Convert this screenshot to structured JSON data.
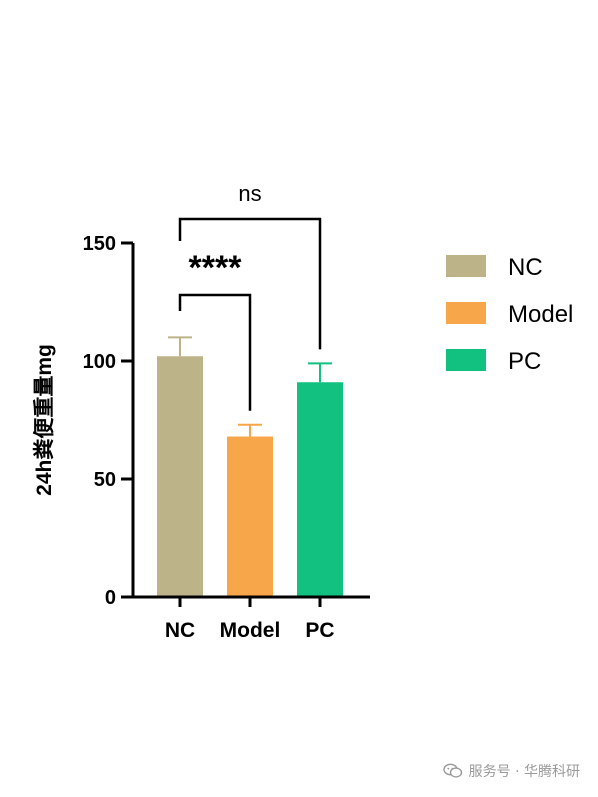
{
  "chart_data": {
    "type": "bar",
    "categories": [
      "NC",
      "Model",
      "PC"
    ],
    "values": [
      102,
      68,
      91
    ],
    "errors": [
      8,
      5,
      8
    ],
    "colors": [
      "#bcb388",
      "#f8a64a",
      "#12c17f"
    ],
    "ylabel": "24h粪便重量mg",
    "xlabel": "",
    "ylim": [
      0,
      150
    ],
    "yticks": [
      0,
      50,
      100,
      150
    ],
    "legend": [
      "NC",
      "Model",
      "PC"
    ],
    "legend_position": "right",
    "grid": false,
    "comparisons": [
      {
        "from": "NC",
        "to": "Model",
        "label": "****"
      },
      {
        "from": "NC",
        "to": "PC",
        "label": "ns"
      }
    ]
  },
  "watermark": {
    "text": "服务号 · 华腾科研",
    "icon": "wechat-icon"
  }
}
